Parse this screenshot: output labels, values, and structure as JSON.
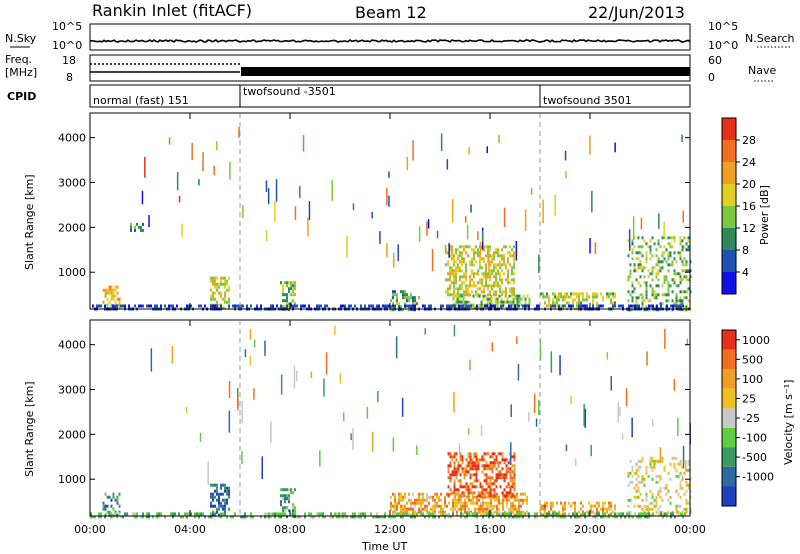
{
  "header": {
    "radar_title": "Rankin Inlet (fitACF)",
    "beam": "Beam 12",
    "date": "22/Jun/2013"
  },
  "status_panels": {
    "nsky_label": "N.Sky",
    "nsky_ticks": [
      "10^5",
      "10^0"
    ],
    "nsearch_label": "N.Search",
    "nsearch_ticks": [
      "10^5",
      "10^0"
    ],
    "freq_label_1": "Freq.",
    "freq_label_2": "[MHz]",
    "freq_ticks": [
      "18",
      "8"
    ],
    "nave_label": "Nave",
    "nave_ticks": [
      "60",
      "0"
    ],
    "cpid_label": "CPID",
    "cpid_segments": [
      {
        "label": "normal (fast) 151",
        "start_hour": 0
      },
      {
        "label": "twofsound -3501",
        "start_hour": 6
      },
      {
        "label": "twofsound 3501",
        "start_hour": 18
      }
    ]
  },
  "chart_data": [
    {
      "type": "heatmap",
      "name": "power",
      "ylabel": "Slant Range [km]",
      "x_range_hours": [
        0,
        24
      ],
      "y_range_km": [
        180,
        4550
      ],
      "yticks": [
        "1000",
        "2000",
        "3000",
        "4000"
      ],
      "colorbar": {
        "label": "Power [dB]",
        "ticks": [
          "4",
          "8",
          "12",
          "16",
          "20",
          "24",
          "28"
        ],
        "colors": [
          "#1010e8",
          "#2050b0",
          "#2e8a5a",
          "#7cc840",
          "#e0d020",
          "#f0a020",
          "#f07020",
          "#e83018"
        ]
      },
      "blobs": [
        {
          "h0": 0.5,
          "h1": 1.2,
          "r0": 180,
          "r1": 700,
          "level": 0.6,
          "density": 0.55
        },
        {
          "h0": 1.6,
          "h1": 2.1,
          "r0": 1900,
          "r1": 2100,
          "level": 0.3,
          "density": 0.6
        },
        {
          "h0": 4.8,
          "h1": 5.6,
          "r0": 180,
          "r1": 900,
          "level": 0.55,
          "density": 0.6
        },
        {
          "h0": 7.6,
          "h1": 8.2,
          "r0": 180,
          "r1": 800,
          "level": 0.45,
          "density": 0.5
        },
        {
          "h0": 12.0,
          "h1": 13.2,
          "r0": 180,
          "r1": 600,
          "level": 0.35,
          "density": 0.45
        },
        {
          "h0": 14.2,
          "h1": 17.0,
          "r0": 500,
          "r1": 1600,
          "level": 0.55,
          "density": 0.55
        },
        {
          "h0": 14.5,
          "h1": 17.6,
          "r0": 180,
          "r1": 500,
          "level": 0.45,
          "density": 0.6
        },
        {
          "h0": 18.0,
          "h1": 21.0,
          "r0": 180,
          "r1": 550,
          "level": 0.5,
          "density": 0.5
        },
        {
          "h0": 21.5,
          "h1": 24.0,
          "r0": 180,
          "r1": 1800,
          "level": 0.4,
          "density": 0.35
        }
      ],
      "ground_band": {
        "r0": 180,
        "r1": 280,
        "level": 0.15
      }
    },
    {
      "type": "heatmap",
      "name": "velocity",
      "ylabel": "Slant Range [km]",
      "x_range_hours": [
        0,
        24
      ],
      "y_range_km": [
        180,
        4550
      ],
      "yticks": [
        "1000",
        "2000",
        "3000",
        "4000"
      ],
      "xticks": [
        "00:00",
        "04:00",
        "08:00",
        "12:00",
        "16:00",
        "20:00",
        "00:00"
      ],
      "xlabel": "Time UT",
      "colorbar": {
        "label": "Velocity [m s⁻¹]",
        "ticks": [
          "1000",
          "500",
          "100",
          "25",
          "-25",
          "-100",
          "-500",
          "-1000"
        ],
        "colors": [
          "#2040c0",
          "#2e6aa0",
          "#3a9a60",
          "#60cc40",
          "#c8c8c8",
          "#f0c020",
          "#f0a020",
          "#f07020",
          "#e83018"
        ]
      },
      "blobs": [
        {
          "h0": 0.5,
          "h1": 1.2,
          "r0": 180,
          "r1": 700,
          "level": 0.25,
          "density": 0.5
        },
        {
          "h0": 4.8,
          "h1": 5.6,
          "r0": 180,
          "r1": 900,
          "level": 0.15,
          "density": 0.55
        },
        {
          "h0": 7.6,
          "h1": 8.2,
          "r0": 180,
          "r1": 800,
          "level": 0.3,
          "density": 0.45
        },
        {
          "h0": 12.0,
          "h1": 17.5,
          "r0": 180,
          "r1": 700,
          "level": 0.7,
          "density": 0.6
        },
        {
          "h0": 14.3,
          "h1": 17.0,
          "r0": 600,
          "r1": 1600,
          "level": 0.88,
          "density": 0.55
        },
        {
          "h0": 18.0,
          "h1": 21.0,
          "r0": 180,
          "r1": 500,
          "level": 0.72,
          "density": 0.45
        },
        {
          "h0": 21.5,
          "h1": 24.0,
          "r0": 180,
          "r1": 1500,
          "level": 0.55,
          "density": 0.3
        }
      ],
      "ground_band": {
        "r0": 180,
        "r1": 260,
        "level": 0.38
      }
    }
  ]
}
